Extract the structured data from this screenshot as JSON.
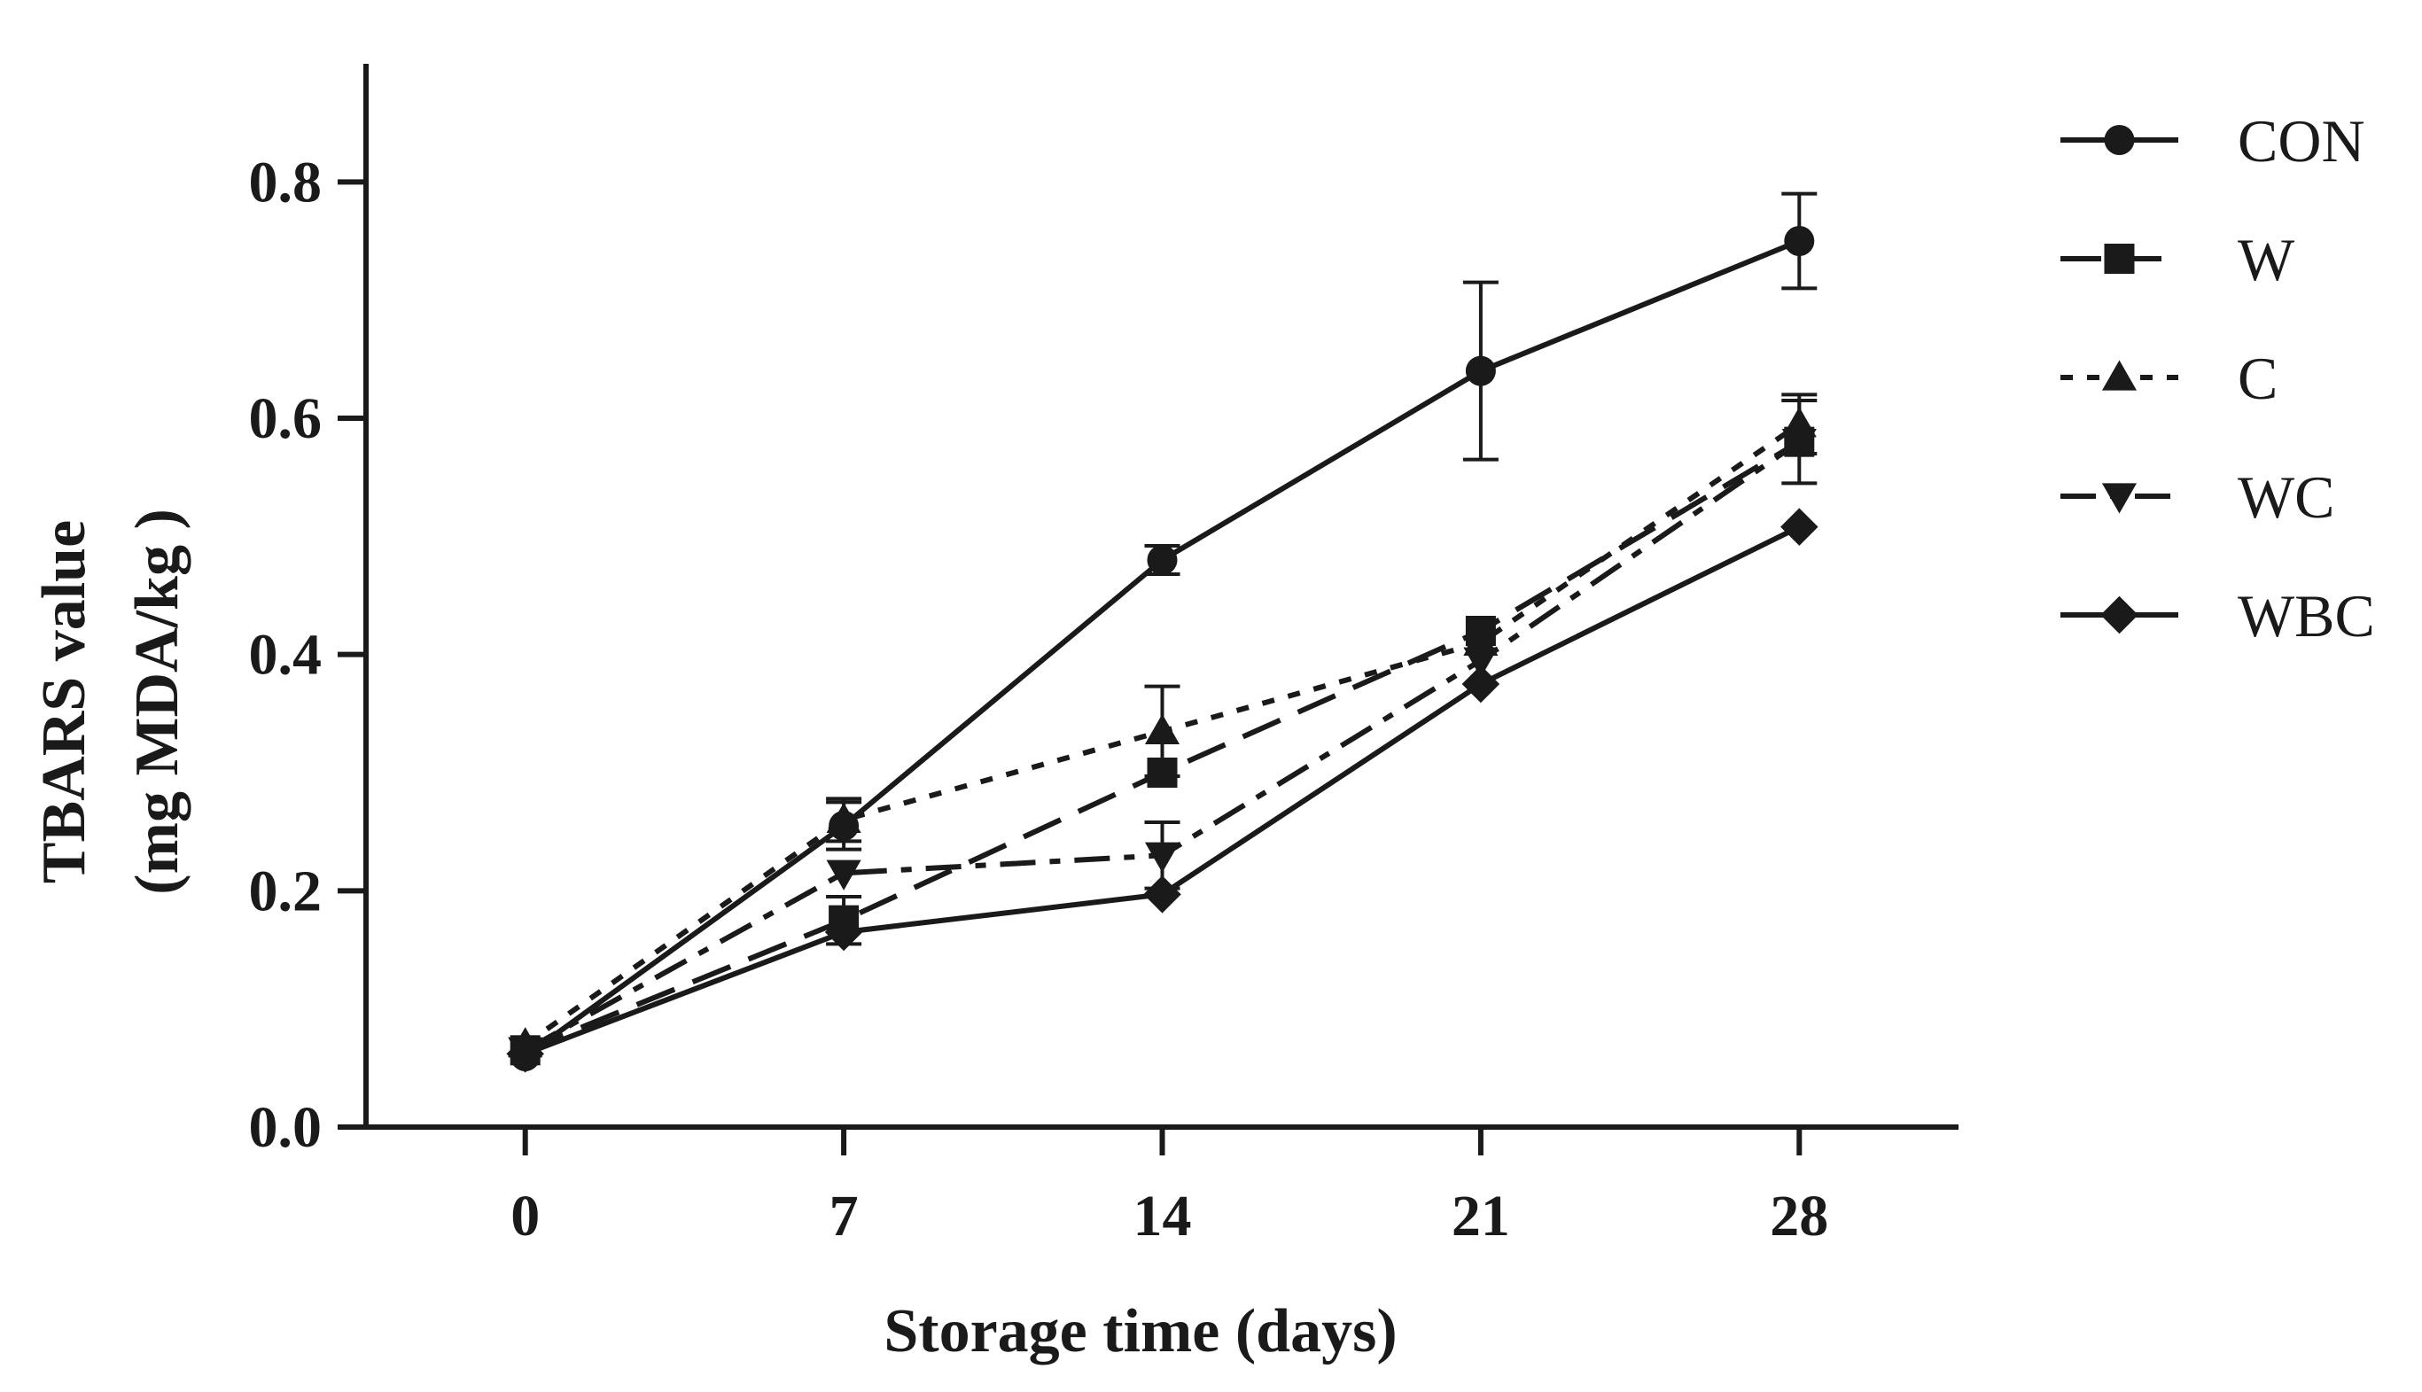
{
  "chart_data": {
    "type": "line",
    "title": "",
    "xlabel": "Storage time (days)",
    "ylabel": [
      "TBARS value",
      "(mg MDA/kg )"
    ],
    "x": [
      0,
      7,
      14,
      21,
      28
    ],
    "x_tick_labels": [
      "0",
      "7",
      "14",
      "21",
      "28"
    ],
    "y_tick_labels": [
      "0.0",
      "0.2",
      "0.4",
      "0.6",
      "0.8"
    ],
    "y_ticks": [
      0.0,
      0.2,
      0.4,
      0.6,
      0.8
    ],
    "xlim": [
      -3.5,
      31.5
    ],
    "ylim": [
      0.0,
      0.9
    ],
    "grid": false,
    "legend_position": "right",
    "series": [
      {
        "name": "CON",
        "marker": "circle",
        "dash": "solid",
        "values": [
          0.06,
          0.255,
          0.48,
          0.64,
          0.75
        ],
        "errors": [
          0.0,
          0.02,
          0.012,
          0.075,
          0.04
        ]
      },
      {
        "name": "W",
        "marker": "square",
        "dash": "long-dash",
        "values": [
          0.065,
          0.175,
          0.3,
          0.42,
          0.58
        ],
        "errors": [
          0.0,
          0.02,
          0.0,
          0.0,
          0.035
        ]
      },
      {
        "name": "C",
        "marker": "triangle-up",
        "dash": "dotted",
        "values": [
          0.07,
          0.26,
          0.335,
          0.41,
          0.595
        ],
        "errors": [
          0.0,
          0.018,
          0.038,
          0.0,
          0.025
        ]
      },
      {
        "name": "WC",
        "marker": "triangle-down",
        "dash": "dash-dot",
        "values": [
          0.065,
          0.215,
          0.23,
          0.395,
          0.58
        ],
        "errors": [
          0.0,
          0.0,
          0.028,
          0.0,
          0.0
        ]
      },
      {
        "name": "WBC",
        "marker": "diamond",
        "dash": "solid",
        "values": [
          0.062,
          0.165,
          0.197,
          0.375,
          0.508
        ],
        "errors": [
          0.0,
          0.0,
          0.0,
          0.0,
          0.0
        ]
      }
    ]
  }
}
